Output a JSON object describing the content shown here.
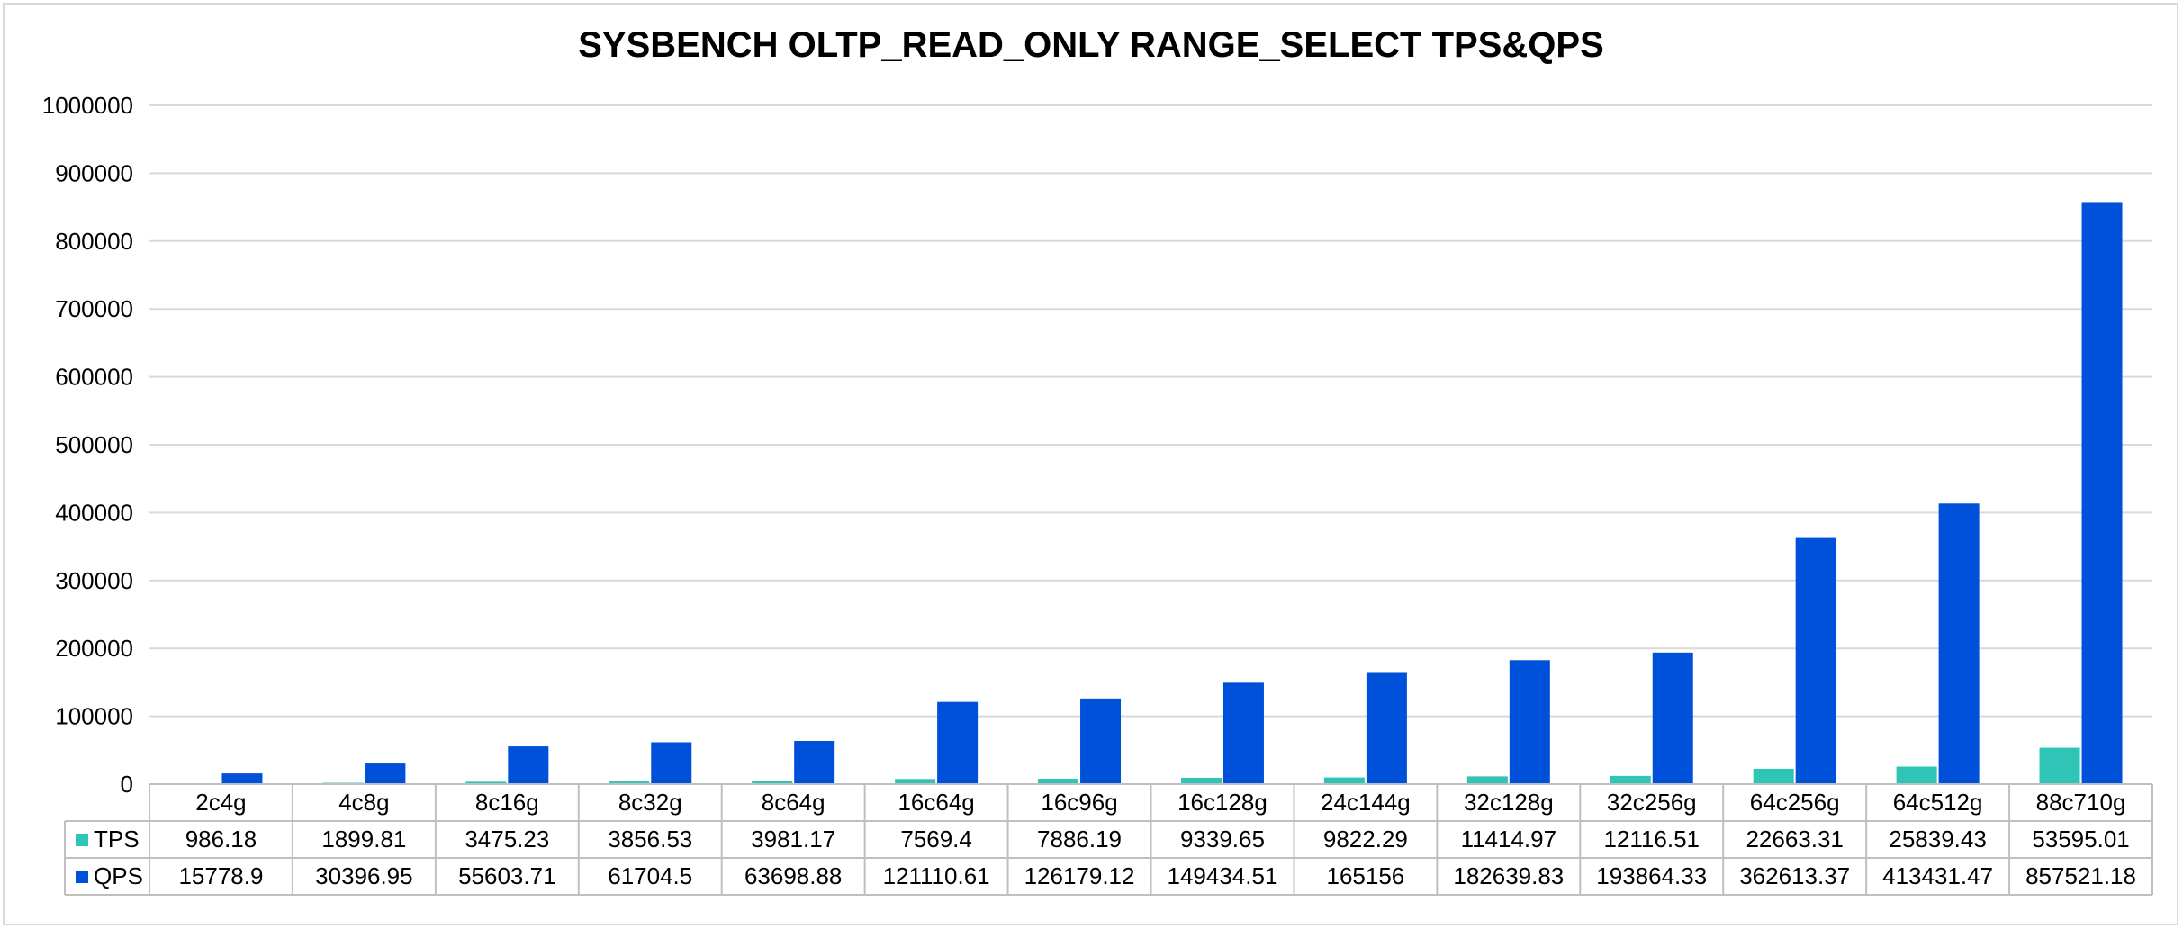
{
  "chart_data": {
    "type": "bar",
    "title": "SYSBENCH OLTP_READ_ONLY RANGE_SELECT TPS&QPS",
    "categories": [
      "2c4g",
      "4c8g",
      "8c16g",
      "8c32g",
      "8c64g",
      "16c64g",
      "16c96g",
      "16c128g",
      "24c144g",
      "32c128g",
      "32c256g",
      "64c256g",
      "64c512g",
      "88c710g"
    ],
    "series": [
      {
        "name": "TPS",
        "color": "#2ec4b6",
        "values": [
          986.18,
          1899.81,
          3475.23,
          3856.53,
          3981.17,
          7569.4,
          7886.19,
          9339.65,
          9822.29,
          11414.97,
          12116.51,
          22663.31,
          25839.43,
          53595.01
        ]
      },
      {
        "name": "QPS",
        "color": "#0051d9",
        "values": [
          15778.9,
          30396.95,
          55603.71,
          61704.5,
          63698.88,
          121110.61,
          126179.12,
          149434.51,
          165156,
          182639.83,
          193864.33,
          362613.37,
          413431.47,
          857521.18
        ]
      }
    ],
    "data_table": {
      "TPS": [
        "986.18",
        "1899.81",
        "3475.23",
        "3856.53",
        "3981.17",
        "7569.4",
        "7886.19",
        "9339.65",
        "9822.29",
        "11414.97",
        "12116.51",
        "22663.31",
        "25839.43",
        "53595.01"
      ],
      "QPS": [
        "15778.9",
        "30396.95",
        "55603.71",
        "61704.5",
        "63698.88",
        "121110.61",
        "126179.12",
        "149434.51",
        "165156",
        "182639.83",
        "193864.33",
        "362613.37",
        "413431.47",
        "857521.18"
      ]
    },
    "ylim": [
      0,
      1000000
    ],
    "yticks": [
      "0",
      "100000",
      "200000",
      "300000",
      "400000",
      "500000",
      "600000",
      "700000",
      "800000",
      "900000",
      "1000000"
    ],
    "grid": true,
    "legend": "in data table",
    "xlabel": "",
    "ylabel": ""
  }
}
